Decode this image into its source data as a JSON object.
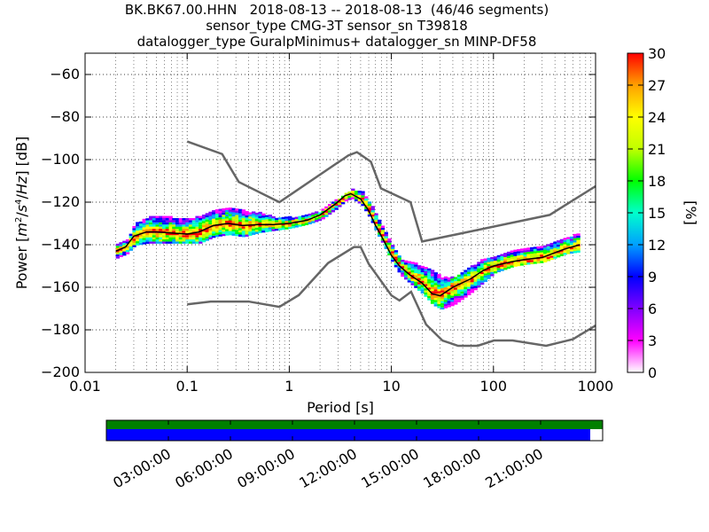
{
  "title": {
    "line1": "BK.BK67.00.HHN   2018-08-13 -- 2018-08-13  (46/46 segments)",
    "line2": "sensor_type CMG-3T sensor_sn T39818",
    "line3": "datalogger_type GuralpMinimus+ datalogger_sn MINP-DF58"
  },
  "colorbar": {
    "label": "[%]",
    "ticks": [
      "0",
      "3",
      "6",
      "9",
      "12",
      "15",
      "18",
      "21",
      "24",
      "27",
      "30"
    ],
    "range": [
      0,
      30
    ]
  },
  "timeline": {
    "ticks": [
      "03:00:00",
      "06:00:00",
      "09:00:00",
      "12:00:00",
      "15:00:00",
      "18:00:00",
      "21:00:00"
    ],
    "data_coverage_fraction": 1.0,
    "processed_coverage_fraction": 0.975,
    "data_color": "#008000",
    "processed_color": "#0000ff"
  },
  "chart_data": {
    "type": "heatmap",
    "xlabel": "Period [s]",
    "ylabel": "Power [m²/s⁴/Hz] [dB]",
    "x_scale": "log",
    "xlim": [
      0.01,
      1000
    ],
    "ylim": [
      -200,
      -50
    ],
    "x_ticks": [
      "0.01",
      "0.1",
      "1",
      "10",
      "100",
      "1000"
    ],
    "y_ticks": [
      "−200",
      "−180",
      "−160",
      "−140",
      "−120",
      "−100",
      "−80",
      "−60"
    ],
    "y_tick_values": [
      -200,
      -180,
      -160,
      -140,
      -120,
      -100,
      -80,
      -60
    ],
    "grid": true,
    "colormap": [
      "#ffffff",
      "#ff00ff",
      "#8000ff",
      "#0000ff",
      "#00a0ff",
      "#00ffcc",
      "#00ff00",
      "#c0ff00",
      "#ffff00",
      "#ffa000",
      "#ff0000"
    ],
    "nhnm": {
      "period": [
        0.1,
        0.22,
        0.32,
        0.8,
        3.8,
        4.6,
        6.3,
        7.9,
        15.4,
        20,
        354.8,
        1000
      ],
      "power": [
        -91.5,
        -97.4,
        -110.5,
        -120,
        -98,
        -96.5,
        -101,
        -113.5,
        -120,
        -138.5,
        -126,
        -112.5
      ]
    },
    "nlnm": {
      "period": [
        0.1,
        0.17,
        0.4,
        0.8,
        1.24,
        2.4,
        4.3,
        5,
        6,
        10,
        12,
        15.6,
        21.9,
        31.6,
        45,
        70,
        101,
        154,
        328,
        600,
        1000
      ],
      "power": [
        -168,
        -166.7,
        -166.7,
        -169.2,
        -163.7,
        -148.6,
        -141.1,
        -141.1,
        -149,
        -163.8,
        -166.2,
        -162.1,
        -177.5,
        -185,
        -187.5,
        -187.5,
        -185,
        -185,
        -187.5,
        -184.4,
        -178
      ]
    },
    "mode_curve": {
      "period": [
        0.02,
        0.025,
        0.03,
        0.04,
        0.05,
        0.07,
        0.1,
        0.13,
        0.18,
        0.25,
        0.35,
        0.5,
        0.7,
        1,
        1.5,
        2,
        2.8,
        3.5,
        4,
        5,
        6,
        7,
        8,
        10,
        12,
        15,
        20,
        25,
        30,
        40,
        60,
        80,
        100,
        150,
        200,
        300,
        500,
        700
      ],
      "power": [
        -143,
        -141,
        -136,
        -134,
        -134,
        -134.5,
        -135,
        -134,
        -131,
        -130,
        -131,
        -130.5,
        -130.5,
        -130,
        -128.5,
        -126,
        -121,
        -117,
        -116,
        -118.5,
        -124,
        -131,
        -136,
        -145,
        -150,
        -154,
        -158,
        -163,
        -164,
        -160,
        -156,
        -152,
        -150,
        -148,
        -147,
        -146,
        -142,
        -140
      ]
    },
    "spread": {
      "period": [
        0.02,
        0.025,
        0.03,
        0.04,
        0.05,
        0.07,
        0.1,
        0.13,
        0.18,
        0.25,
        0.35,
        0.5,
        0.7,
        1,
        1.5,
        2,
        2.8,
        3.5,
        4,
        5,
        6,
        7,
        8,
        10,
        12,
        15,
        20,
        25,
        30,
        40,
        60,
        80,
        100,
        150,
        200,
        300,
        500,
        700
      ],
      "upper": [
        -140,
        -138,
        -130,
        -127,
        -127,
        -127,
        -128,
        -126,
        -124,
        -122,
        -124,
        -125,
        -127,
        -127,
        -126,
        -124,
        -119,
        -116,
        -114,
        -115,
        -120,
        -127,
        -132,
        -140,
        -147,
        -148,
        -150,
        -152,
        -155,
        -155,
        -150,
        -146,
        -145,
        -143,
        -142,
        -140,
        -137,
        -134
      ],
      "lower": [
        -146,
        -144,
        -140,
        -139,
        -139,
        -139,
        -139,
        -139,
        -136,
        -135,
        -136,
        -134,
        -133,
        -132,
        -130,
        -128,
        -123,
        -119,
        -118,
        -121,
        -127,
        -134,
        -139,
        -148,
        -154,
        -158,
        -163,
        -168,
        -170,
        -168,
        -162,
        -157,
        -153,
        -150,
        -149,
        -148,
        -144,
        -143
      ]
    }
  }
}
